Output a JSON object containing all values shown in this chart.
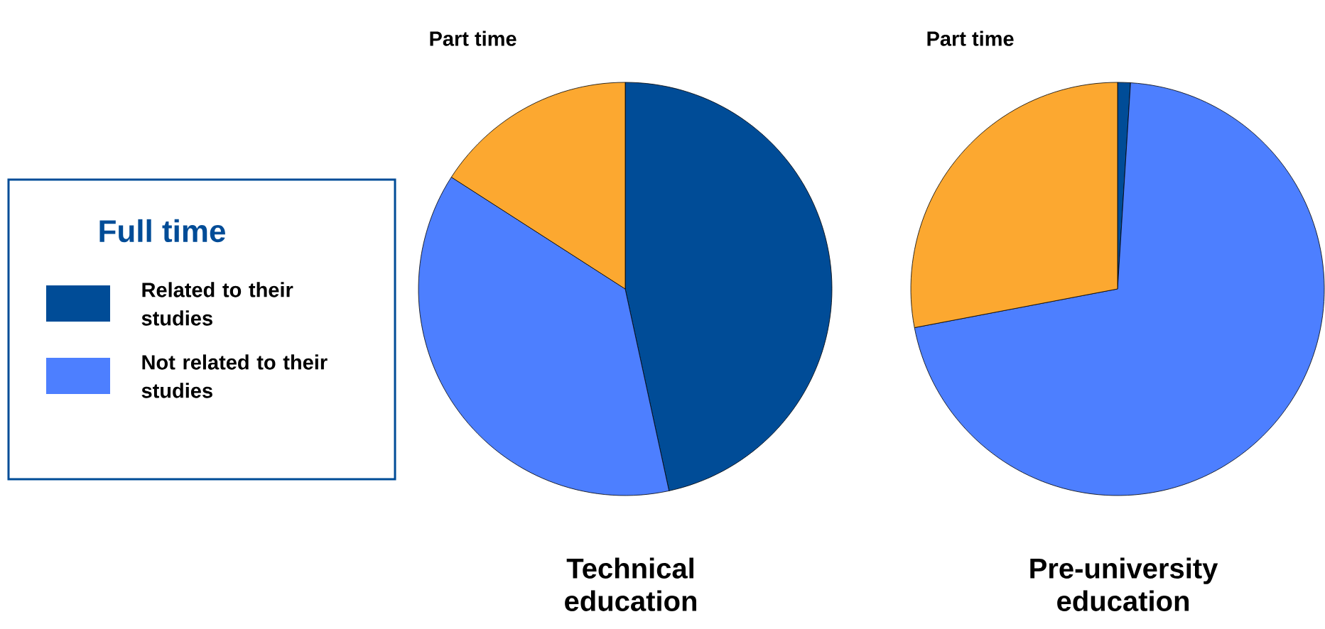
{
  "chart_data": [
    {
      "type": "pie",
      "title": "Technical education",
      "legend_title": "Full time",
      "legend": "left",
      "categories": [
        "Related to their studies",
        "Not related to their studies",
        "Part time"
      ],
      "values": [
        46.6,
        37.5,
        15.9
      ],
      "colors": [
        "#004c97",
        "#4d7fff",
        "#fca830"
      ]
    },
    {
      "type": "pie",
      "title": "Pre-university education",
      "categories": [
        null,
        null,
        "Part time"
      ],
      "values": [
        1.0,
        71.0,
        28.0
      ],
      "colors": [
        "#004c97",
        "#4d7fff",
        "#fca830"
      ]
    }
  ]
}
